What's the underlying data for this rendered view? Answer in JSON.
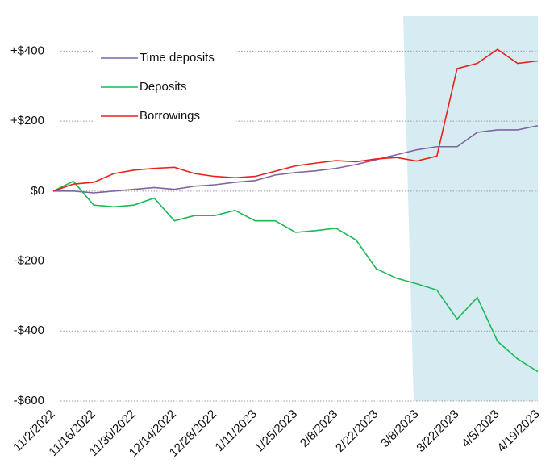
{
  "chart_data": {
    "type": "line",
    "categories": [
      "11/2/2022",
      null,
      "11/16/2022",
      null,
      "11/30/2022",
      null,
      "12/14/2022",
      null,
      "12/28/2022",
      null,
      "1/11/2023",
      null,
      "1/25/2023",
      null,
      "2/8/2023",
      null,
      "2/22/2023",
      null,
      "3/8/2023",
      null,
      "3/22/2023",
      null,
      "4/5/2023",
      null,
      "4/19/2023"
    ],
    "series": [
      {
        "name": "Time deposits",
        "color": "#8064a2",
        "values": [
          0,
          0,
          -5,
          0,
          5,
          10,
          5,
          14,
          18,
          25,
          30,
          46,
          53,
          58,
          65,
          76,
          90,
          104,
          118,
          127,
          127,
          168,
          175,
          175,
          187
        ]
      },
      {
        "name": "Deposits",
        "color": "#1db954",
        "values": [
          0,
          28,
          -40,
          -45,
          -40,
          -20,
          -85,
          -70,
          -70,
          -55,
          -85,
          -85,
          -118,
          -113,
          -106,
          -140,
          -222,
          -249,
          -265,
          -283,
          -366,
          -304,
          -429,
          -480,
          -516
        ]
      },
      {
        "name": "Borrowings",
        "color": "#e8221b",
        "values": [
          0,
          20,
          25,
          50,
          60,
          65,
          68,
          50,
          42,
          38,
          42,
          57,
          72,
          80,
          87,
          84,
          92,
          96,
          86,
          100,
          350,
          365,
          405,
          365,
          372
        ]
      }
    ],
    "ylim": [
      -600,
      500
    ],
    "yticks": [
      {
        "value": -600,
        "label": "-$600"
      },
      {
        "value": -400,
        "label": "-$400"
      },
      {
        "value": -200,
        "label": "-$200"
      },
      {
        "value": 0,
        "label": "$0"
      },
      {
        "value": 200,
        "label": "+$200"
      },
      {
        "value": 400,
        "label": "+$400"
      }
    ],
    "grid": true,
    "legend": "top-left"
  }
}
